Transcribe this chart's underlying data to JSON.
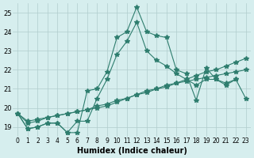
{
  "xlabel": "Humidex (Indice chaleur)",
  "ylabel": "",
  "xlim": [
    -0.5,
    23.5
  ],
  "ylim": [
    18.5,
    25.5
  ],
  "yticks": [
    19,
    20,
    21,
    22,
    23,
    24,
    25
  ],
  "xticks": [
    0,
    1,
    2,
    3,
    4,
    5,
    6,
    7,
    8,
    9,
    10,
    11,
    12,
    13,
    14,
    15,
    16,
    17,
    18,
    19,
    20,
    21,
    22,
    23
  ],
  "bg_color": "#d6eeee",
  "line_color": "#2e7d6e",
  "grid_color": "#b0cccc",
  "lines": [
    [
      19.7,
      18.9,
      19.0,
      19.2,
      19.2,
      18.7,
      18.7,
      20.9,
      21.0,
      21.9,
      23.7,
      24.0,
      25.3,
      24.0,
      23.8,
      23.7,
      22.0,
      21.8,
      20.4,
      22.1,
      21.5,
      21.2,
      21.5,
      null
    ],
    [
      19.7,
      18.9,
      19.0,
      19.2,
      19.2,
      18.7,
      19.3,
      19.3,
      20.5,
      21.5,
      22.8,
      23.5,
      24.5,
      23.0,
      22.5,
      22.2,
      21.8,
      21.5,
      21.2,
      21.5,
      21.5,
      21.3,
      21.5,
      20.5
    ],
    [
      19.7,
      19.2,
      19.3,
      19.5,
      19.6,
      19.7,
      19.8,
      19.9,
      20.0,
      20.1,
      20.3,
      20.5,
      20.7,
      20.8,
      21.0,
      21.1,
      21.3,
      21.4,
      21.5,
      21.6,
      21.7,
      21.8,
      21.9,
      22.0
    ],
    [
      19.7,
      19.3,
      19.4,
      19.5,
      19.6,
      19.7,
      19.8,
      19.9,
      20.1,
      20.2,
      20.4,
      20.5,
      20.7,
      20.9,
      21.0,
      21.2,
      21.3,
      21.5,
      21.7,
      21.9,
      22.0,
      22.2,
      22.4,
      22.6
    ]
  ]
}
